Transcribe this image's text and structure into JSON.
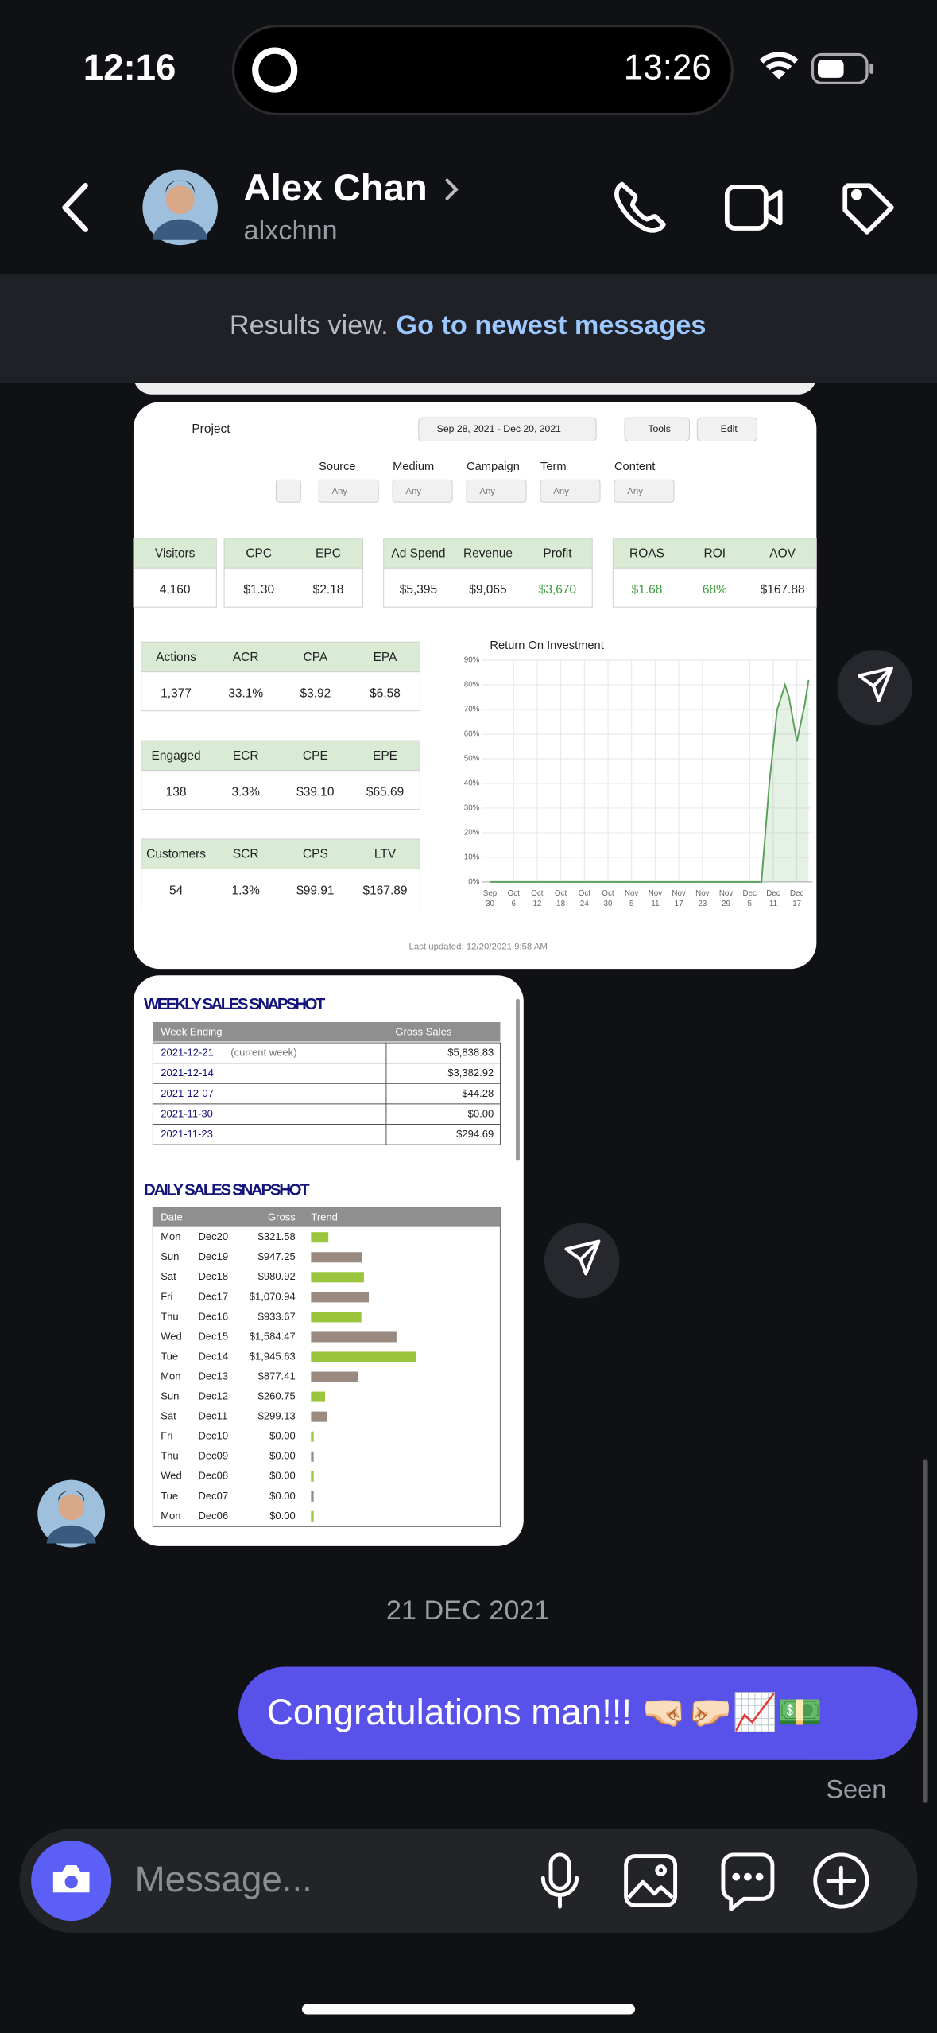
{
  "status": {
    "time": "12:16",
    "island_time": "13:26"
  },
  "header": {
    "name": "Alex Chan",
    "handle": "alxchnn"
  },
  "banner": {
    "text": "Results view.",
    "link": "Go to newest messages"
  },
  "dashboard": {
    "project": "Project",
    "date_range": "Sep 28, 2021 - Dec 20, 2021",
    "tools": "Tools",
    "edit": "Edit",
    "filters": [
      {
        "label": "Source",
        "value": "Any"
      },
      {
        "label": "Medium",
        "value": "Any"
      },
      {
        "label": "Campaign",
        "value": "Any"
      },
      {
        "label": "Term",
        "value": "Any"
      },
      {
        "label": "Content",
        "value": "Any"
      }
    ],
    "top_metrics": [
      [
        {
          "label": "Visitors",
          "value": "4,160"
        }
      ],
      [
        {
          "label": "CPC",
          "value": "$1.30"
        },
        {
          "label": "EPC",
          "value": "$2.18"
        }
      ],
      [
        {
          "label": "Ad Spend",
          "value": "$5,395"
        },
        {
          "label": "Revenue",
          "value": "$9,065"
        },
        {
          "label": "Profit",
          "value": "$3,670",
          "color": "#3d9a3d"
        }
      ],
      [
        {
          "label": "ROAS",
          "value": "$1.68",
          "color": "#3d9a3d"
        },
        {
          "label": "ROI",
          "value": "68%",
          "color": "#3d9a3d"
        },
        {
          "label": "AOV",
          "value": "$167.88"
        }
      ]
    ],
    "side_metrics": [
      [
        {
          "label": "Actions",
          "value": "1,377"
        },
        {
          "label": "ACR",
          "value": "33.1%"
        },
        {
          "label": "CPA",
          "value": "$3.92"
        },
        {
          "label": "EPA",
          "value": "$6.58"
        }
      ],
      [
        {
          "label": "Engaged",
          "value": "138"
        },
        {
          "label": "ECR",
          "value": "3.3%"
        },
        {
          "label": "CPE",
          "value": "$39.10"
        },
        {
          "label": "EPE",
          "value": "$65.69"
        }
      ],
      [
        {
          "label": "Customers",
          "value": "54"
        },
        {
          "label": "SCR",
          "value": "1.3%"
        },
        {
          "label": "CPS",
          "value": "$99.91"
        },
        {
          "label": "LTV",
          "value": "$167.89"
        }
      ]
    ],
    "roi_chart": {
      "type": "line",
      "title": "Return On Investment",
      "color": "#5aa05a",
      "x": [
        0,
        69,
        71,
        73,
        75,
        76,
        78,
        80,
        81
      ],
      "values": [
        0,
        0,
        40,
        70,
        80,
        75,
        57,
        72,
        82
      ],
      "xlim": [
        -2,
        82
      ],
      "ylim": [
        0,
        90
      ],
      "yticks": [
        {
          "value": 0,
          "label": "0%"
        },
        {
          "value": 10,
          "label": "10%"
        },
        {
          "value": 20,
          "label": "20%"
        },
        {
          "value": 30,
          "label": "30%"
        },
        {
          "value": 40,
          "label": "40%"
        },
        {
          "value": 50,
          "label": "50%"
        },
        {
          "value": 60,
          "label": "60%"
        },
        {
          "value": 70,
          "label": "70%"
        },
        {
          "value": 80,
          "label": "80%"
        },
        {
          "value": 90,
          "label": "90%"
        }
      ],
      "xticks": [
        0,
        6,
        12,
        18,
        24,
        30,
        36,
        42,
        48,
        54,
        60,
        66,
        72,
        78
      ],
      "xtick_labels": [
        [
          "Sep",
          "30"
        ],
        [
          "Oct",
          "6"
        ],
        [
          "Oct",
          "12"
        ],
        [
          "Oct",
          "18"
        ],
        [
          "Oct",
          "24"
        ],
        [
          "Oct",
          "30"
        ],
        [
          "Nov",
          "5"
        ],
        [
          "Nov",
          "11"
        ],
        [
          "Nov",
          "17"
        ],
        [
          "Nov",
          "23"
        ],
        [
          "Nov",
          "29"
        ],
        [
          "Dec",
          "5"
        ],
        [
          "Dec",
          "11"
        ],
        [
          "Dec",
          "17"
        ]
      ],
      "grid": true
    },
    "last_updated": "Last updated: 12/20/2021 9:58 AM"
  },
  "weekly": {
    "title": "WEEKLY SALES SNAPSHOT",
    "headers": [
      "Week Ending",
      "Gross Sales"
    ],
    "rows": [
      {
        "week": "2021-12-21",
        "note": "(current week)",
        "gross": "$5,838.83"
      },
      {
        "week": "2021-12-14",
        "gross": "$3,382.92"
      },
      {
        "week": "2021-12-07",
        "gross": "$44.28"
      },
      {
        "week": "2021-11-30",
        "gross": "$0.00"
      },
      {
        "week": "2021-11-23",
        "gross": "$294.69"
      }
    ]
  },
  "daily": {
    "title": "DAILY SALES SNAPSHOT",
    "headers": [
      "Date",
      "Gross",
      "Trend"
    ],
    "trend_colors": [
      "#9bc53d",
      "#9a8a80"
    ],
    "rows": [
      {
        "day": "Mon",
        "date": "Dec20",
        "gross": "$321.58",
        "trend": 321.58
      },
      {
        "day": "Sun",
        "date": "Dec19",
        "gross": "$947.25",
        "trend": 947.25
      },
      {
        "day": "Sat",
        "date": "Dec18",
        "gross": "$980.92",
        "trend": 980.92
      },
      {
        "day": "Fri",
        "date": "Dec17",
        "gross": "$1,070.94",
        "trend": 1070.94
      },
      {
        "day": "Thu",
        "date": "Dec16",
        "gross": "$933.67",
        "trend": 933.67
      },
      {
        "day": "Wed",
        "date": "Dec15",
        "gross": "$1,584.47",
        "trend": 1584.47
      },
      {
        "day": "Tue",
        "date": "Dec14",
        "gross": "$1,945.63",
        "trend": 1945.63
      },
      {
        "day": "Mon",
        "date": "Dec13",
        "gross": "$877.41",
        "trend": 877.41
      },
      {
        "day": "Sun",
        "date": "Dec12",
        "gross": "$260.75",
        "trend": 260.75
      },
      {
        "day": "Sat",
        "date": "Dec11",
        "gross": "$299.13",
        "trend": 299.13
      },
      {
        "day": "Fri",
        "date": "Dec10",
        "gross": "$0.00",
        "trend": 0
      },
      {
        "day": "Thu",
        "date": "Dec09",
        "gross": "$0.00",
        "trend": 0
      },
      {
        "day": "Wed",
        "date": "Dec08",
        "gross": "$0.00",
        "trend": 0
      },
      {
        "day": "Tue",
        "date": "Dec07",
        "gross": "$0.00",
        "trend": 0
      },
      {
        "day": "Mon",
        "date": "Dec06",
        "gross": "$0.00",
        "trend": 0
      }
    ]
  },
  "date_separator": "21 DEC 2021",
  "message": "Congratulations man!!! 🤜🏻🤛🏻📈💵",
  "seen": "Seen",
  "input_placeholder": "Message..."
}
